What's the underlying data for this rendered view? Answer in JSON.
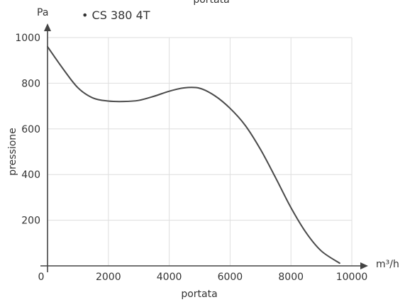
{
  "chart_data": {
    "type": "line",
    "title": "",
    "top_label": "portata",
    "xlabel": "portata",
    "ylabel": "pressione",
    "x_unit": "m³/h",
    "y_unit": "Pa",
    "xlim": [
      0,
      10000
    ],
    "ylim": [
      0,
      1000
    ],
    "x_ticks": [
      0,
      2000,
      4000,
      6000,
      8000,
      10000
    ],
    "y_ticks": [
      200,
      400,
      600,
      800,
      1000
    ],
    "grid": true,
    "legend_position": "top-left",
    "series": [
      {
        "name": "• CS 380 4T",
        "color": "#4a4a4a",
        "x": [
          0,
          500,
          1000,
          1500,
          2000,
          2500,
          3000,
          3500,
          4000,
          4500,
          5000,
          5500,
          6000,
          6500,
          7000,
          7500,
          8000,
          8500,
          9000,
          9600
        ],
        "y": [
          960,
          865,
          780,
          735,
          722,
          720,
          725,
          743,
          765,
          780,
          778,
          745,
          690,
          615,
          510,
          385,
          255,
          145,
          65,
          12
        ]
      }
    ]
  }
}
